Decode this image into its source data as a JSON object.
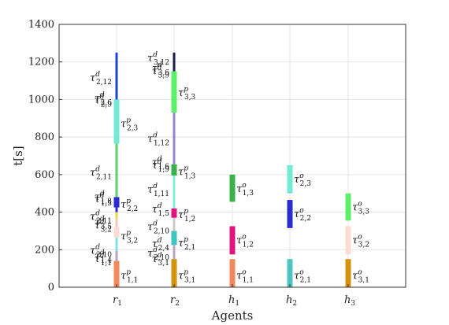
{
  "chart_data": {
    "type": "bar",
    "subtype": "range-timeline",
    "xlabel": "Agents",
    "ylabel": "t[s]",
    "ylim": [
      0,
      1400
    ],
    "yticks": [
      0,
      200,
      400,
      600,
      800,
      1000,
      1200,
      1400
    ],
    "grid": true,
    "categories": [
      {
        "id": "r1",
        "base": "r",
        "sub": "1"
      },
      {
        "id": "r2",
        "base": "r",
        "sub": "2"
      },
      {
        "id": "h1",
        "base": "h",
        "sub": "1"
      },
      {
        "id": "h2",
        "base": "h",
        "sub": "2"
      },
      {
        "id": "h3",
        "base": "h",
        "sub": "3"
      }
    ],
    "bars": [
      {
        "agent": 0,
        "start": 0,
        "end": 140,
        "color": "#f08a5d",
        "wide": true
      },
      {
        "agent": 0,
        "start": 140,
        "end": 195,
        "color": "#b9a3c9",
        "wide": false
      },
      {
        "agent": 0,
        "start": 195,
        "end": 265,
        "color": "#7fe0f0",
        "wide": false
      },
      {
        "agent": 0,
        "start": 265,
        "end": 320,
        "color": "#fadcd2",
        "wide": true
      },
      {
        "agent": 0,
        "start": 320,
        "end": 365,
        "color": "#f5c6b8",
        "wide": false
      },
      {
        "agent": 0,
        "start": 365,
        "end": 400,
        "color": "#e8d84a",
        "wide": false
      },
      {
        "agent": 0,
        "start": 400,
        "end": 425,
        "color": "#2b2bd0",
        "wide": false
      },
      {
        "agent": 0,
        "start": 425,
        "end": 480,
        "color": "#2b2bd0",
        "wide": true
      },
      {
        "agent": 0,
        "start": 480,
        "end": 765,
        "color": "#5fd06a",
        "wide": false
      },
      {
        "agent": 0,
        "start": 765,
        "end": 1000,
        "color": "#72ead6",
        "wide": true
      },
      {
        "agent": 0,
        "start": 1000,
        "end": 1250,
        "color": "#2244cc",
        "wide": false
      },
      {
        "agent": 1,
        "start": 0,
        "end": 150,
        "color": "#d4920f",
        "wide": true
      },
      {
        "agent": 1,
        "start": 150,
        "end": 225,
        "color": "#b7a7c5",
        "wide": false
      },
      {
        "agent": 1,
        "start": 225,
        "end": 300,
        "color": "#3ec4c0",
        "wide": true
      },
      {
        "agent": 1,
        "start": 300,
        "end": 370,
        "color": "#c9c9c9",
        "wide": false
      },
      {
        "agent": 1,
        "start": 370,
        "end": 420,
        "color": "#e0147c",
        "wide": true
      },
      {
        "agent": 1,
        "start": 420,
        "end": 595,
        "color": "#7ff0d8",
        "wide": false
      },
      {
        "agent": 1,
        "start": 595,
        "end": 655,
        "color": "#3cb04a",
        "wide": true
      },
      {
        "agent": 1,
        "start": 655,
        "end": 930,
        "color": "#8f88d8",
        "wide": false
      },
      {
        "agent": 1,
        "start": 930,
        "end": 1150,
        "color": "#5cf06a",
        "wide": true
      },
      {
        "agent": 1,
        "start": 1150,
        "end": 1250,
        "color": "#1a1a5a",
        "wide": false
      },
      {
        "agent": 2,
        "start": 0,
        "end": 150,
        "color": "#f08a5d",
        "wide": true
      },
      {
        "agent": 2,
        "start": 175,
        "end": 325,
        "color": "#e0147c",
        "wide": true
      },
      {
        "agent": 2,
        "start": 455,
        "end": 600,
        "color": "#3cb04a",
        "wide": true
      },
      {
        "agent": 3,
        "start": 0,
        "end": 150,
        "color": "#4ec5c1",
        "wide": true
      },
      {
        "agent": 3,
        "start": 315,
        "end": 465,
        "color": "#2b2bd0",
        "wide": true
      },
      {
        "agent": 3,
        "start": 500,
        "end": 650,
        "color": "#72ead6",
        "wide": true
      },
      {
        "agent": 4,
        "start": 0,
        "end": 150,
        "color": "#d4920f",
        "wide": true
      },
      {
        "agent": 4,
        "start": 175,
        "end": 325,
        "color": "#fadcd2",
        "wide": true
      },
      {
        "agent": 4,
        "start": 355,
        "end": 500,
        "color": "#5cf06a",
        "wide": true
      }
    ],
    "annotations": [
      {
        "agent": 0,
        "side": "right",
        "y": 60,
        "base": "τ",
        "sup": "p",
        "sub": "1,1"
      },
      {
        "agent": 0,
        "side": "right",
        "y": 270,
        "base": "τ",
        "sup": "p",
        "sub": "3,2"
      },
      {
        "agent": 0,
        "side": "right",
        "y": 440,
        "base": "τ",
        "sup": "p",
        "sub": "2,2"
      },
      {
        "agent": 0,
        "side": "right",
        "y": 870,
        "base": "τ",
        "sup": "p",
        "sub": "2,3"
      },
      {
        "agent": 0,
        "side": "left",
        "y": 150,
        "base": "τ",
        "sup": "d",
        "sub": "1,1"
      },
      {
        "agent": 0,
        "side": "left",
        "y": 165,
        "base": "τ",
        "sup": "d",
        "sub": "1,4"
      },
      {
        "agent": 0,
        "side": "left",
        "y": 195,
        "base": "τ",
        "sup": "d",
        "sub": "2,10"
      },
      {
        "agent": 0,
        "side": "left",
        "y": 330,
        "base": "τ",
        "sup": "d",
        "sub": "3,2"
      },
      {
        "agent": 0,
        "side": "left",
        "y": 345,
        "base": "τ",
        "sup": "d",
        "sub": "3,5"
      },
      {
        "agent": 0,
        "side": "left",
        "y": 375,
        "base": "τ",
        "sup": "d",
        "sub": "2,11"
      },
      {
        "agent": 0,
        "side": "left",
        "y": 470,
        "base": "τ",
        "sup": "d",
        "sub": "1,5"
      },
      {
        "agent": 0,
        "side": "left",
        "y": 480,
        "base": "τ",
        "sup": "d",
        "sub": "1,8"
      },
      {
        "agent": 0,
        "side": "left",
        "y": 610,
        "base": "τ",
        "sup": "d",
        "sub": "2,11"
      },
      {
        "agent": 0,
        "side": "left",
        "y": 995,
        "base": "τ",
        "sup": "d",
        "sub": "2,9"
      },
      {
        "agent": 0,
        "side": "left",
        "y": 1005,
        "base": "τ",
        "sup": "d",
        "sub": "2,6"
      },
      {
        "agent": 0,
        "side": "left",
        "y": 1115,
        "base": "τ",
        "sup": "d",
        "sub": "2,12"
      },
      {
        "agent": 1,
        "side": "right",
        "y": 60,
        "base": "τ",
        "sup": "p",
        "sub": "3,1"
      },
      {
        "agent": 1,
        "side": "right",
        "y": 235,
        "base": "τ",
        "sup": "p",
        "sub": "2,1"
      },
      {
        "agent": 1,
        "side": "right",
        "y": 385,
        "base": "τ",
        "sup": "p",
        "sub": "1,2"
      },
      {
        "agent": 1,
        "side": "right",
        "y": 615,
        "base": "τ",
        "sup": "p",
        "sub": "1,3"
      },
      {
        "agent": 1,
        "side": "right",
        "y": 1035,
        "base": "τ",
        "sup": "p",
        "sub": "3,3"
      },
      {
        "agent": 1,
        "side": "left",
        "y": 150,
        "base": "τ",
        "sup": "d",
        "sub": "3,1"
      },
      {
        "agent": 1,
        "side": "left",
        "y": 180,
        "base": "τ",
        "sup": "d",
        "sub": "2,10"
      },
      {
        "agent": 1,
        "side": "left",
        "y": 230,
        "base": "τ",
        "sup": "d",
        "sub": "2,4"
      },
      {
        "agent": 1,
        "side": "left",
        "y": 320,
        "base": "τ",
        "sup": "d",
        "sub": "2,10"
      },
      {
        "agent": 1,
        "side": "left",
        "y": 415,
        "base": "τ",
        "sup": "d",
        "sub": "1,5"
      },
      {
        "agent": 1,
        "side": "left",
        "y": 520,
        "base": "τ",
        "sup": "d",
        "sub": "1,11"
      },
      {
        "agent": 1,
        "side": "left",
        "y": 650,
        "base": "τ",
        "sup": "d",
        "sub": "1,9"
      },
      {
        "agent": 1,
        "side": "left",
        "y": 665,
        "base": "τ",
        "sup": "d",
        "sub": "1,6"
      },
      {
        "agent": 1,
        "side": "left",
        "y": 790,
        "base": "τ",
        "sup": "d",
        "sub": "1,12"
      },
      {
        "agent": 1,
        "side": "left",
        "y": 1150,
        "base": "τ",
        "sup": "d",
        "sub": "3,9"
      },
      {
        "agent": 1,
        "side": "left",
        "y": 1165,
        "base": "τ",
        "sup": "d",
        "sub": "3,6"
      },
      {
        "agent": 1,
        "side": "left",
        "y": 1220,
        "base": "τ",
        "sup": "d",
        "sub": "3,12"
      },
      {
        "agent": 2,
        "side": "right",
        "y": 60,
        "base": "τ",
        "sup": "o",
        "sub": "1,1"
      },
      {
        "agent": 2,
        "side": "right",
        "y": 250,
        "base": "τ",
        "sup": "o",
        "sub": "1,2"
      },
      {
        "agent": 2,
        "side": "right",
        "y": 525,
        "base": "τ",
        "sup": "o",
        "sub": "1,3"
      },
      {
        "agent": 3,
        "side": "right",
        "y": 60,
        "base": "τ",
        "sup": "o",
        "sub": "2,1"
      },
      {
        "agent": 3,
        "side": "right",
        "y": 390,
        "base": "τ",
        "sup": "o",
        "sub": "2,2"
      },
      {
        "agent": 3,
        "side": "right",
        "y": 575,
        "base": "τ",
        "sup": "o",
        "sub": "2,3"
      },
      {
        "agent": 4,
        "side": "right",
        "y": 60,
        "base": "τ",
        "sup": "o",
        "sub": "3,1"
      },
      {
        "agent": 4,
        "side": "right",
        "y": 250,
        "base": "τ",
        "sup": "o",
        "sub": "3,2"
      },
      {
        "agent": 4,
        "side": "right",
        "y": 425,
        "base": "τ",
        "sup": "o",
        "sub": "3,3"
      }
    ]
  }
}
